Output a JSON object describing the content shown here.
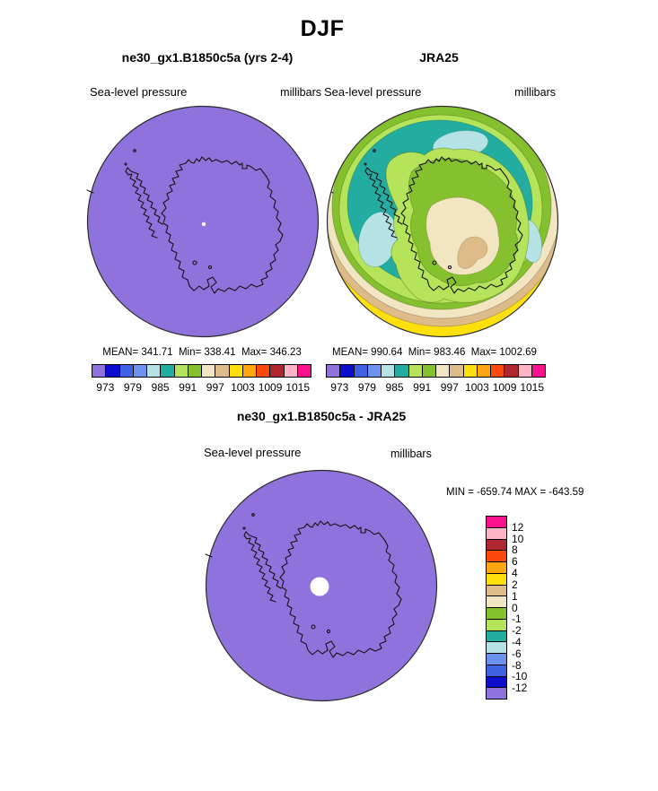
{
  "header": {
    "title": "DJF"
  },
  "panels": {
    "left": {
      "title": "ne30_gx1.B1850c5a (yrs 2-4)",
      "field_label": "Sea-level pressure",
      "units_label": "millibars",
      "stats": "MEAN= 341.71  Min= 338.41  Max= 346.23",
      "ticks": [
        "973",
        "979",
        "985",
        "991",
        "997",
        "1003",
        "1009",
        "1015"
      ]
    },
    "right": {
      "title": "JRA25",
      "field_label": "Sea-level pressure",
      "units_label": "millibars",
      "stats": "MEAN= 990.64  Min= 983.46  Max= 1002.69",
      "ticks": [
        "973",
        "979",
        "985",
        "991",
        "997",
        "1003",
        "1009",
        "1015"
      ]
    },
    "diff": {
      "title": "ne30_gx1.B1850c5a - JRA25",
      "field_label": "Sea-level pressure",
      "units_label": "millibars",
      "minmax": "MIN = -659.74 MAX = -643.59",
      "cbar_labels": [
        "12",
        "10",
        "8",
        "6",
        "4",
        "2",
        "1",
        "0",
        "-1",
        "-2",
        "-4",
        "-6",
        "-8",
        "-10",
        "-12"
      ]
    }
  },
  "colors": {
    "scale": [
      "#8F72DB",
      "#0D0DCE",
      "#3E62E2",
      "#6B93EE",
      "#B5E3E5",
      "#23ACA0",
      "#B5E359",
      "#85C12F",
      "#F2E5C2",
      "#DDBC8A",
      "#FFE00D",
      "#FFA713",
      "#FB4A0D",
      "#B0262E",
      "#FFB3C6",
      "#F9118D"
    ],
    "map_uniform_fill": "#8F72DB",
    "coastline": "#141414",
    "pole_dot": "#FFFFFF",
    "jra25_regions": {
      "yellow": "#FFE00D",
      "tan": "#DDBC8A",
      "cream": "#F2E5C2",
      "green": "#85C12F",
      "light_green": "#B5E359",
      "teal": "#23ACA0",
      "light_blue": "#B5E3E5"
    }
  },
  "chart_data": [
    {
      "type": "heatmap",
      "projection": "south-polar-stereographic",
      "title": "ne30_gx1.B1850c5a (yrs 2-4)",
      "variable": "Sea-level pressure",
      "units": "millibars",
      "mean": 341.71,
      "min": 338.41,
      "max": 346.23,
      "contour_levels": [
        973,
        976,
        979,
        982,
        985,
        988,
        991,
        994,
        997,
        1000,
        1003,
        1006,
        1009,
        1012,
        1015
      ],
      "labeled_levels": [
        973,
        979,
        985,
        991,
        997,
        1003,
        1009,
        1015
      ],
      "legend_position": "bottom",
      "note": "entire field below lowest level, map renders uniform purple with Antarctica coastline"
    },
    {
      "type": "heatmap",
      "projection": "south-polar-stereographic",
      "title": "JRA25",
      "variable": "Sea-level pressure",
      "units": "millibars",
      "mean": 990.64,
      "min": 983.46,
      "max": 1002.69,
      "contour_levels": [
        973,
        976,
        979,
        982,
        985,
        988,
        991,
        994,
        997,
        1000,
        1003,
        1006,
        1009,
        1012,
        1015
      ],
      "labeled_levels": [
        973,
        979,
        985,
        991,
        997,
        1003,
        1009,
        1015
      ],
      "legend_position": "bottom",
      "note": "circumpolar trough in teal/pale-blue (982-988), light/dark green 988-994, cream-tan interior high 994-1000, yellow 1000-1003 at outer southern edge"
    },
    {
      "type": "heatmap",
      "projection": "south-polar-stereographic",
      "title": "ne30_gx1.B1850c5a - JRA25",
      "variable": "Sea-level pressure difference",
      "units": "millibars",
      "min": -659.74,
      "max": -643.59,
      "contour_levels": [
        12,
        10,
        8,
        6,
        4,
        2,
        1,
        0,
        -1,
        -2,
        -4,
        -6,
        -8,
        -10,
        -12
      ],
      "legend_position": "right",
      "note": "entire difference field below -12, map renders uniform purple"
    }
  ]
}
